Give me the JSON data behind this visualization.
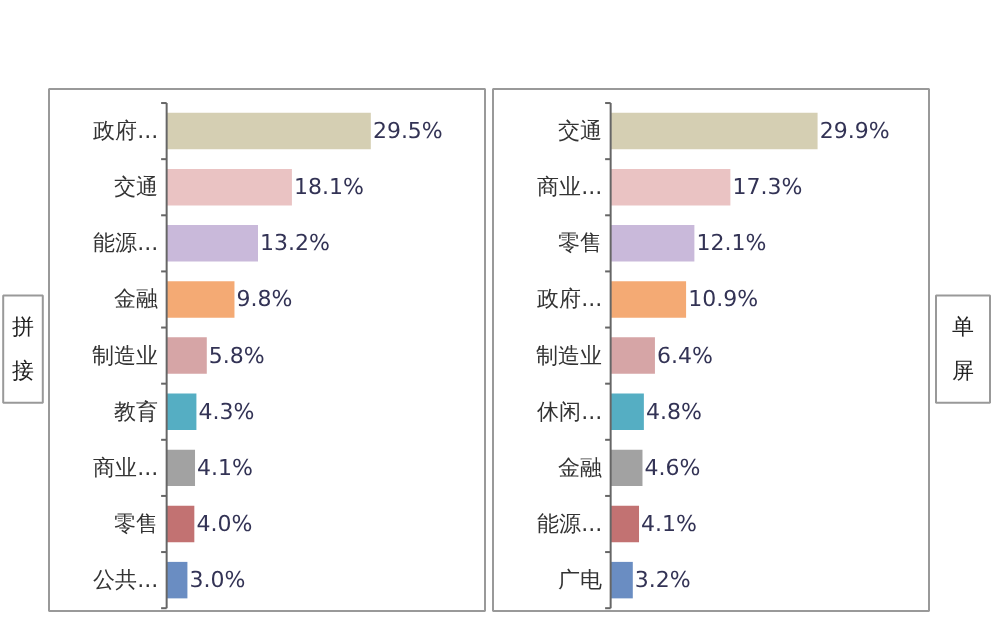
{
  "chart_data": [
    {
      "type": "bar",
      "orientation": "horizontal",
      "ylabel": "拼接",
      "data_labels": true,
      "categories": [
        "政府...",
        "交通",
        "能源...",
        "金融",
        "制造业",
        "教育",
        "商业...",
        "零售",
        "公共..."
      ],
      "values": [
        29.5,
        18.1,
        13.2,
        9.8,
        5.8,
        4.3,
        4.1,
        4.0,
        3.0
      ],
      "value_labels": [
        "29.5%",
        "18.1%",
        "13.2%",
        "9.8%",
        "5.8%",
        "4.3%",
        "4.1%",
        "4.0%",
        "3.0%"
      ],
      "colors": [
        "#d5cfb3",
        "#eac3c3",
        "#c9b9da",
        "#f4aa74",
        "#d6a5a6",
        "#55aec3",
        "#a2a2a2",
        "#c27272",
        "#6a8dc2"
      ]
    },
    {
      "type": "bar",
      "orientation": "horizontal",
      "ylabel": "单屏",
      "data_labels": true,
      "categories": [
        "交通",
        "商业...",
        "零售",
        "政府...",
        "制造业",
        "休闲...",
        "金融",
        "能源...",
        "广电"
      ],
      "values": [
        29.9,
        17.3,
        12.1,
        10.9,
        6.4,
        4.8,
        4.6,
        4.1,
        3.2
      ],
      "value_labels": [
        "29.9%",
        "17.3%",
        "12.1%",
        "10.9%",
        "6.4%",
        "4.8%",
        "4.6%",
        "4.1%",
        "3.2%"
      ],
      "colors": [
        "#d5cfb3",
        "#eac3c3",
        "#c9b9da",
        "#f4aa74",
        "#d6a5a6",
        "#55aec3",
        "#a2a2a2",
        "#c27272",
        "#6a8dc2"
      ]
    }
  ]
}
